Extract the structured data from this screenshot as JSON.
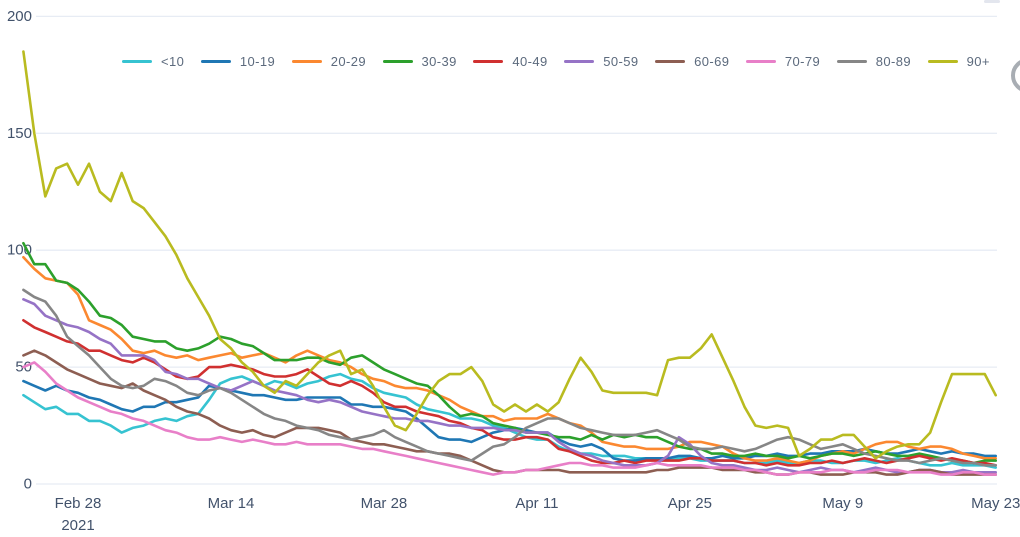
{
  "chart_data": {
    "type": "line",
    "title": "",
    "xlabel": "",
    "ylabel": "",
    "ylim": [
      0,
      200
    ],
    "grid": "horizontal",
    "legend_position": "top",
    "y_ticks": [
      {
        "value": 0,
        "label": "0"
      },
      {
        "value": 50,
        "label": "50"
      },
      {
        "value": 100,
        "label": "100"
      },
      {
        "value": 150,
        "label": "150"
      },
      {
        "value": 200,
        "label": "200"
      }
    ],
    "x_ticks": [
      {
        "index": 5,
        "label": "Feb 28",
        "sublabel": "2021"
      },
      {
        "index": 19,
        "label": "Mar 14",
        "sublabel": ""
      },
      {
        "index": 33,
        "label": "Mar 28",
        "sublabel": ""
      },
      {
        "index": 47,
        "label": "Apr 11",
        "sublabel": ""
      },
      {
        "index": 61,
        "label": "Apr 25",
        "sublabel": ""
      },
      {
        "index": 75,
        "label": "May 9",
        "sublabel": ""
      },
      {
        "index": 89,
        "label": "May 23",
        "sublabel": ""
      }
    ],
    "x": [
      "Feb 23",
      "Feb 24",
      "Feb 25",
      "Feb 26",
      "Feb 27",
      "Feb 28",
      "Mar 1",
      "Mar 2",
      "Mar 3",
      "Mar 4",
      "Mar 5",
      "Mar 6",
      "Mar 7",
      "Mar 8",
      "Mar 9",
      "Mar 10",
      "Mar 11",
      "Mar 12",
      "Mar 13",
      "Mar 14",
      "Mar 15",
      "Mar 16",
      "Mar 17",
      "Mar 18",
      "Mar 19",
      "Mar 20",
      "Mar 21",
      "Mar 22",
      "Mar 23",
      "Mar 24",
      "Mar 25",
      "Mar 26",
      "Mar 27",
      "Mar 28",
      "Mar 29",
      "Mar 30",
      "Mar 31",
      "Apr 1",
      "Apr 2",
      "Apr 3",
      "Apr 4",
      "Apr 5",
      "Apr 6",
      "Apr 7",
      "Apr 8",
      "Apr 9",
      "Apr 10",
      "Apr 11",
      "Apr 12",
      "Apr 13",
      "Apr 14",
      "Apr 15",
      "Apr 16",
      "Apr 17",
      "Apr 18",
      "Apr 19",
      "Apr 20",
      "Apr 21",
      "Apr 22",
      "Apr 23",
      "Apr 24",
      "Apr 25",
      "Apr 26",
      "Apr 27",
      "Apr 28",
      "Apr 29",
      "Apr 30",
      "May 1",
      "May 2",
      "May 3",
      "May 4",
      "May 5",
      "May 6",
      "May 7",
      "May 8",
      "May 9",
      "May 10",
      "May 11",
      "May 12",
      "May 13",
      "May 14",
      "May 15",
      "May 16",
      "May 17",
      "May 18",
      "May 19",
      "May 20",
      "May 21",
      "May 22",
      "May 23"
    ],
    "series": [
      {
        "name": "<10",
        "color": "#36c3d1",
        "values": [
          38,
          35,
          32,
          33,
          30,
          30,
          27,
          27,
          25,
          22,
          24,
          25,
          27,
          28,
          27,
          29,
          30,
          36,
          43,
          45,
          46,
          44,
          42,
          44,
          43,
          41,
          43,
          44,
          46,
          47,
          45,
          44,
          41,
          39,
          38,
          37,
          34,
          32,
          31,
          30,
          28,
          28,
          27,
          25,
          24,
          22,
          20,
          19,
          19,
          16,
          14,
          13,
          13,
          12,
          12,
          12,
          11,
          11,
          11,
          11,
          11,
          11,
          10,
          10,
          10,
          10,
          9,
          9,
          9,
          10,
          9,
          9,
          10,
          10,
          9,
          9,
          10,
          10,
          9,
          10,
          11,
          10,
          9,
          8,
          8,
          9,
          8,
          8,
          8,
          7
        ]
      },
      {
        "name": "10-19",
        "color": "#1f77b4",
        "values": [
          44,
          42,
          40,
          42,
          40,
          39,
          37,
          36,
          34,
          32,
          31,
          33,
          33,
          35,
          35,
          36,
          37,
          42,
          41,
          40,
          39,
          38,
          38,
          37,
          36,
          36,
          37,
          37,
          37,
          37,
          34,
          34,
          33,
          33,
          32,
          31,
          28,
          24,
          20,
          19,
          19,
          18,
          20,
          22,
          23,
          24,
          23,
          22,
          22,
          19,
          17,
          16,
          17,
          15,
          11,
          10,
          10,
          11,
          11,
          11,
          12,
          12,
          11,
          11,
          12,
          11,
          11,
          12,
          12,
          13,
          12,
          12,
          13,
          13,
          14,
          14,
          14,
          15,
          14,
          13,
          13,
          14,
          15,
          14,
          13,
          14,
          13,
          13,
          12,
          12
        ]
      },
      {
        "name": "20-29",
        "color": "#fb8830",
        "values": [
          97,
          92,
          88,
          87,
          86,
          81,
          70,
          68,
          66,
          62,
          57,
          56,
          57,
          55,
          54,
          55,
          53,
          54,
          55,
          56,
          54,
          55,
          56,
          54,
          52,
          55,
          57,
          55,
          53,
          52,
          50,
          47,
          45,
          44,
          42,
          41,
          41,
          40,
          38,
          36,
          33,
          31,
          29,
          29,
          27,
          28,
          28,
          28,
          30,
          28,
          26,
          25,
          22,
          18,
          17,
          16,
          16,
          15,
          15,
          15,
          16,
          18,
          18,
          17,
          16,
          13,
          11,
          10,
          10,
          11,
          10,
          9,
          10,
          12,
          13,
          14,
          13,
          15,
          17,
          18,
          18,
          16,
          15,
          16,
          16,
          15,
          13,
          12,
          11,
          11
        ]
      },
      {
        "name": "30-39",
        "color": "#2ca02c",
        "values": [
          103,
          94,
          94,
          87,
          86,
          83,
          78,
          72,
          71,
          68,
          63,
          62,
          61,
          61,
          58,
          57,
          58,
          60,
          63,
          62,
          60,
          59,
          56,
          53,
          53,
          53,
          54,
          54,
          52,
          51,
          54,
          55,
          52,
          49,
          47,
          45,
          43,
          42,
          38,
          33,
          29,
          30,
          29,
          26,
          25,
          24,
          22,
          22,
          21,
          20,
          20,
          19,
          21,
          19,
          21,
          20,
          21,
          20,
          20,
          18,
          16,
          15,
          15,
          13,
          13,
          12,
          12,
          13,
          12,
          12,
          11,
          12,
          11,
          12,
          13,
          13,
          12,
          13,
          14,
          13,
          12,
          12,
          13,
          12,
          11,
          10,
          10,
          9,
          10,
          10
        ]
      },
      {
        "name": "40-49",
        "color": "#d03030",
        "values": [
          70,
          67,
          65,
          63,
          61,
          60,
          57,
          57,
          55,
          53,
          52,
          54,
          52,
          49,
          46,
          45,
          46,
          50,
          50,
          51,
          50,
          49,
          47,
          46,
          46,
          47,
          49,
          46,
          43,
          42,
          44,
          42,
          39,
          35,
          33,
          33,
          31,
          30,
          29,
          27,
          26,
          24,
          23,
          20,
          19,
          19,
          20,
          20,
          19,
          15,
          14,
          12,
          10,
          9,
          9,
          10,
          9,
          10,
          10,
          10,
          10,
          11,
          11,
          10,
          10,
          10,
          9,
          9,
          8,
          9,
          8,
          8,
          9,
          9,
          10,
          9,
          10,
          11,
          10,
          9,
          10,
          11,
          12,
          11,
          10,
          11,
          10,
          9,
          9,
          8
        ]
      },
      {
        "name": "50-59",
        "color": "#9673c6",
        "values": [
          79,
          77,
          72,
          70,
          68,
          67,
          65,
          62,
          60,
          55,
          55,
          55,
          53,
          48,
          47,
          45,
          45,
          43,
          41,
          40,
          42,
          44,
          42,
          40,
          39,
          38,
          36,
          35,
          36,
          35,
          33,
          31,
          30,
          29,
          28,
          28,
          27,
          27,
          26,
          25,
          25,
          24,
          24,
          24,
          23,
          23,
          22,
          22,
          22,
          18,
          15,
          13,
          12,
          10,
          9,
          8,
          8,
          8,
          9,
          12,
          20,
          17,
          12,
          9,
          8,
          8,
          7,
          6,
          6,
          7,
          6,
          5,
          6,
          7,
          6,
          6,
          5,
          6,
          7,
          6,
          5,
          5,
          6,
          6,
          5,
          5,
          6,
          5,
          5,
          5
        ]
      },
      {
        "name": "60-69",
        "color": "#8d5e52",
        "values": [
          55,
          57,
          55,
          52,
          49,
          47,
          45,
          43,
          42,
          41,
          43,
          40,
          38,
          36,
          33,
          31,
          30,
          28,
          25,
          23,
          22,
          23,
          21,
          20,
          22,
          24,
          24,
          24,
          23,
          22,
          19,
          18,
          17,
          17,
          16,
          15,
          14,
          14,
          13,
          13,
          12,
          10,
          8,
          6,
          5,
          5,
          6,
          6,
          6,
          6,
          5,
          5,
          5,
          5,
          5,
          5,
          5,
          5,
          6,
          6,
          7,
          7,
          7,
          7,
          6,
          6,
          6,
          5,
          5,
          4,
          4,
          5,
          5,
          4,
          4,
          4,
          5,
          5,
          5,
          4,
          4,
          5,
          6,
          6,
          5,
          4,
          4,
          4,
          4,
          4
        ]
      },
      {
        "name": "70-79",
        "color": "#e87fc8",
        "values": [
          50,
          52,
          48,
          43,
          40,
          37,
          35,
          33,
          31,
          30,
          28,
          27,
          25,
          23,
          22,
          20,
          19,
          19,
          20,
          19,
          18,
          19,
          18,
          17,
          17,
          18,
          17,
          17,
          17,
          17,
          16,
          15,
          15,
          14,
          13,
          12,
          11,
          10,
          9,
          8,
          7,
          6,
          5,
          4,
          5,
          5,
          6,
          6,
          7,
          8,
          9,
          9,
          8,
          8,
          7,
          7,
          7,
          8,
          9,
          8,
          8,
          8,
          8,
          7,
          7,
          7,
          6,
          6,
          5,
          4,
          4,
          5,
          5,
          5,
          6,
          6,
          5,
          5,
          6,
          6,
          6,
          5,
          5,
          5,
          4,
          4,
          5,
          5,
          4,
          4
        ]
      },
      {
        "name": "80-89",
        "color": "#868686",
        "values": [
          83,
          80,
          78,
          72,
          63,
          59,
          55,
          50,
          45,
          42,
          41,
          42,
          45,
          44,
          42,
          39,
          38,
          40,
          41,
          39,
          36,
          33,
          30,
          28,
          27,
          25,
          24,
          23,
          21,
          20,
          19,
          20,
          21,
          23,
          20,
          18,
          16,
          14,
          13,
          12,
          11,
          10,
          13,
          16,
          17,
          20,
          24,
          26,
          28,
          28,
          26,
          24,
          23,
          22,
          21,
          21,
          21,
          22,
          23,
          21,
          19,
          16,
          15,
          15,
          16,
          15,
          14,
          15,
          17,
          19,
          20,
          19,
          17,
          15,
          16,
          17,
          15,
          13,
          12,
          11,
          10,
          10,
          9,
          10,
          11,
          10,
          9,
          9,
          8,
          8
        ]
      },
      {
        "name": "90+",
        "color": "#b9bb20",
        "values": [
          185,
          150,
          123,
          135,
          137,
          128,
          137,
          125,
          121,
          133,
          121,
          118,
          112,
          106,
          98,
          88,
          80,
          72,
          62,
          58,
          52,
          48,
          42,
          39,
          44,
          42,
          47,
          52,
          55,
          57,
          47,
          49,
          42,
          33,
          25,
          23,
          30,
          38,
          44,
          47,
          47,
          50,
          44,
          34,
          31,
          34,
          31,
          34,
          31,
          35,
          45,
          54,
          48,
          40,
          39,
          39,
          39,
          39,
          38,
          53,
          54,
          54,
          58,
          64,
          54,
          44,
          33,
          25,
          24,
          25,
          24,
          12,
          15,
          19,
          19,
          21,
          21,
          16,
          11,
          14,
          16,
          17,
          17,
          22,
          35,
          47,
          47,
          47,
          47,
          38
        ]
      }
    ]
  },
  "styling": {
    "grid_color": "#e7ecf4",
    "axis_label_color": "#42526b",
    "legend_label_color": "#5c6a7d"
  }
}
